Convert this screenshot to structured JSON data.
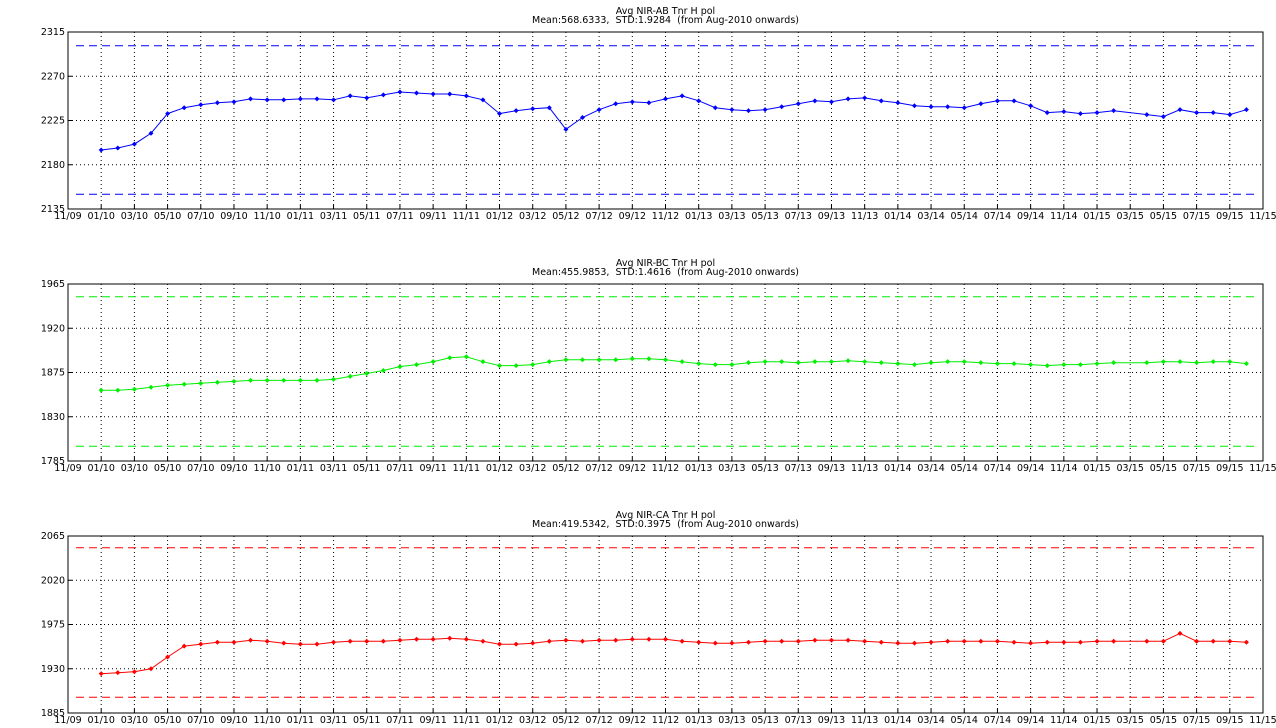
{
  "chart_data": [
    {
      "type": "line",
      "title": "Avg NIR-AB Tnr H pol",
      "subtitle": "Mean:568.6333,  STD:1.9284  (from Aug-2010 onwards)",
      "x": [
        "01/10",
        "02/10",
        "03/10",
        "04/10",
        "05/10",
        "06/10",
        "07/10",
        "08/10",
        "09/10",
        "10/10",
        "11/10",
        "12/10",
        "01/11",
        "02/11",
        "03/11",
        "04/11",
        "05/11",
        "06/11",
        "07/11",
        "08/11",
        "09/11",
        "10/11",
        "11/11",
        "12/11",
        "01/12",
        "02/12",
        "03/12",
        "04/12",
        "05/12",
        "06/12",
        "07/12",
        "08/12",
        "09/12",
        "10/12",
        "11/12",
        "12/12",
        "01/13",
        "02/13",
        "03/13",
        "04/13",
        "05/13",
        "06/13",
        "07/13",
        "08/13",
        "09/13",
        "10/13",
        "11/13",
        "12/13",
        "01/14",
        "02/14",
        "03/14",
        "04/14",
        "05/14",
        "06/14",
        "07/14",
        "08/14",
        "09/14",
        "10/14",
        "11/14",
        "12/14",
        "01/15",
        "02/15",
        "04/15",
        "05/15",
        "06/15",
        "07/15",
        "08/15",
        "09/15",
        "10/15"
      ],
      "series": [
        {
          "color": "#0000ff",
          "values": [
            2195,
            2197,
            2201,
            2212,
            2232,
            2238,
            2241,
            2243,
            2244,
            2247,
            2246,
            2246,
            2247,
            2247,
            2246,
            2250,
            2248,
            2251,
            2254,
            2253,
            2252,
            2252,
            2250,
            2246,
            2232,
            2235,
            2237,
            2238,
            2216,
            2228,
            2236,
            2242,
            2244,
            2243,
            2247,
            2250,
            2245,
            2238,
            2236,
            2235,
            2236,
            2239,
            2242,
            2245,
            2244,
            2247,
            2248,
            2245,
            2243,
            2240,
            2239,
            2239,
            2238,
            2242,
            2245,
            2245,
            2240,
            2233,
            2234,
            2232,
            2233,
            2235,
            2231,
            2229,
            2236,
            2233,
            2233,
            2231,
            2236
          ]
        }
      ],
      "limit_lines": [
        2301,
        2150
      ],
      "xlim": [
        "11/09",
        "11/15"
      ],
      "xticks": [
        "11/09",
        "01/10",
        "03/10",
        "05/10",
        "07/10",
        "09/10",
        "11/10",
        "01/11",
        "03/11",
        "05/11",
        "07/11",
        "09/11",
        "11/11",
        "01/12",
        "03/12",
        "05/12",
        "07/12",
        "09/12",
        "11/12",
        "01/13",
        "03/13",
        "05/13",
        "07/13",
        "09/13",
        "11/13",
        "01/14",
        "03/14",
        "05/14",
        "07/14",
        "09/14",
        "11/14",
        "01/15",
        "03/15",
        "05/15",
        "07/15",
        "09/15",
        "11/15"
      ],
      "ylim": [
        2135,
        2315
      ],
      "yticks": [
        2135,
        2180,
        2225,
        2270,
        2315
      ],
      "grid": true
    },
    {
      "type": "line",
      "title": "Avg NIR-BC Tnr H pol",
      "subtitle": "Mean:455.9853,  STD:1.4616  (from Aug-2010 onwards)",
      "x": [
        "01/10",
        "02/10",
        "03/10",
        "04/10",
        "05/10",
        "06/10",
        "07/10",
        "08/10",
        "09/10",
        "10/10",
        "11/10",
        "12/10",
        "01/11",
        "02/11",
        "03/11",
        "04/11",
        "05/11",
        "06/11",
        "07/11",
        "08/11",
        "09/11",
        "10/11",
        "11/11",
        "12/11",
        "01/12",
        "02/12",
        "03/12",
        "04/12",
        "05/12",
        "06/12",
        "07/12",
        "08/12",
        "09/12",
        "10/12",
        "11/12",
        "12/12",
        "01/13",
        "02/13",
        "03/13",
        "04/13",
        "05/13",
        "06/13",
        "07/13",
        "08/13",
        "09/13",
        "10/13",
        "11/13",
        "12/13",
        "01/14",
        "02/14",
        "03/14",
        "04/14",
        "05/14",
        "06/14",
        "07/14",
        "08/14",
        "09/14",
        "10/14",
        "11/14",
        "12/14",
        "01/15",
        "02/15",
        "04/15",
        "05/15",
        "06/15",
        "07/15",
        "08/15",
        "09/15",
        "10/15"
      ],
      "series": [
        {
          "color": "#00ee00",
          "values": [
            1857,
            1857,
            1858,
            1860,
            1862,
            1863,
            1864,
            1865,
            1866,
            1867,
            1867,
            1867,
            1867,
            1867,
            1868,
            1871,
            1874,
            1877,
            1881,
            1883,
            1886,
            1890,
            1891,
            1886,
            1882,
            1882,
            1883,
            1886,
            1888,
            1888,
            1888,
            1888,
            1889,
            1889,
            1888,
            1886,
            1884,
            1883,
            1883,
            1885,
            1886,
            1886,
            1885,
            1886,
            1886,
            1887,
            1886,
            1885,
            1884,
            1883,
            1885,
            1886,
            1886,
            1885,
            1884,
            1884,
            1883,
            1882,
            1883,
            1883,
            1884,
            1885,
            1885,
            1886,
            1886,
            1885,
            1886,
            1886,
            1884
          ]
        }
      ],
      "limit_lines": [
        1952,
        1800
      ],
      "xlim": [
        "11/09",
        "11/15"
      ],
      "xticks": [
        "11/09",
        "01/10",
        "03/10",
        "05/10",
        "07/10",
        "09/10",
        "11/10",
        "01/11",
        "03/11",
        "05/11",
        "07/11",
        "09/11",
        "11/11",
        "01/12",
        "03/12",
        "05/12",
        "07/12",
        "09/12",
        "11/12",
        "01/13",
        "03/13",
        "05/13",
        "07/13",
        "09/13",
        "11/13",
        "01/14",
        "03/14",
        "05/14",
        "07/14",
        "09/14",
        "11/14",
        "01/15",
        "03/15",
        "05/15",
        "07/15",
        "09/15",
        "11/15"
      ],
      "ylim": [
        1785,
        1965
      ],
      "yticks": [
        1785,
        1830,
        1875,
        1920,
        1965
      ],
      "grid": true
    },
    {
      "type": "line",
      "title": "Avg NIR-CA Tnr H pol",
      "subtitle": "Mean:419.5342,  STD:0.3975  (from Aug-2010 onwards)",
      "x": [
        "01/10",
        "02/10",
        "03/10",
        "04/10",
        "05/10",
        "06/10",
        "07/10",
        "08/10",
        "09/10",
        "10/10",
        "11/10",
        "12/10",
        "01/11",
        "02/11",
        "03/11",
        "04/11",
        "05/11",
        "06/11",
        "07/11",
        "08/11",
        "09/11",
        "10/11",
        "11/11",
        "12/11",
        "01/12",
        "02/12",
        "03/12",
        "04/12",
        "05/12",
        "06/12",
        "07/12",
        "08/12",
        "09/12",
        "10/12",
        "11/12",
        "12/12",
        "01/13",
        "02/13",
        "03/13",
        "04/13",
        "05/13",
        "06/13",
        "07/13",
        "08/13",
        "09/13",
        "10/13",
        "11/13",
        "12/13",
        "01/14",
        "02/14",
        "03/14",
        "04/14",
        "05/14",
        "06/14",
        "07/14",
        "08/14",
        "09/14",
        "10/14",
        "11/14",
        "12/14",
        "01/15",
        "02/15",
        "04/15",
        "05/15",
        "06/15",
        "07/15",
        "08/15",
        "09/15",
        "10/15"
      ],
      "series": [
        {
          "color": "#ff0000",
          "values": [
            1925,
            1926,
            1927,
            1930,
            1942,
            1953,
            1955,
            1957,
            1957,
            1959,
            1958,
            1956,
            1955,
            1955,
            1957,
            1958,
            1958,
            1958,
            1959,
            1960,
            1960,
            1961,
            1960,
            1958,
            1955,
            1955,
            1956,
            1958,
            1959,
            1958,
            1959,
            1959,
            1960,
            1960,
            1960,
            1958,
            1957,
            1956,
            1956,
            1957,
            1958,
            1958,
            1958,
            1959,
            1959,
            1959,
            1958,
            1957,
            1956,
            1956,
            1957,
            1958,
            1958,
            1958,
            1958,
            1957,
            1956,
            1957,
            1957,
            1957,
            1958,
            1958,
            1958,
            1958,
            1966,
            1958,
            1958,
            1958,
            1957
          ]
        }
      ],
      "limit_lines": [
        2053,
        1901
      ],
      "xlim": [
        "11/09",
        "11/15"
      ],
      "xticks": [
        "11/09",
        "01/10",
        "03/10",
        "05/10",
        "07/10",
        "09/10",
        "11/10",
        "01/11",
        "03/11",
        "05/11",
        "07/11",
        "09/11",
        "11/11",
        "01/12",
        "03/12",
        "05/12",
        "07/12",
        "09/12",
        "11/12",
        "01/13",
        "03/13",
        "05/13",
        "07/13",
        "09/13",
        "11/13",
        "01/14",
        "03/14",
        "05/14",
        "07/14",
        "09/14",
        "11/14",
        "01/15",
        "03/15",
        "05/15",
        "07/15",
        "09/15",
        "11/15"
      ],
      "ylim": [
        1885,
        2065
      ],
      "yticks": [
        1885,
        1930,
        1975,
        2020,
        2065
      ],
      "grid": true
    }
  ]
}
